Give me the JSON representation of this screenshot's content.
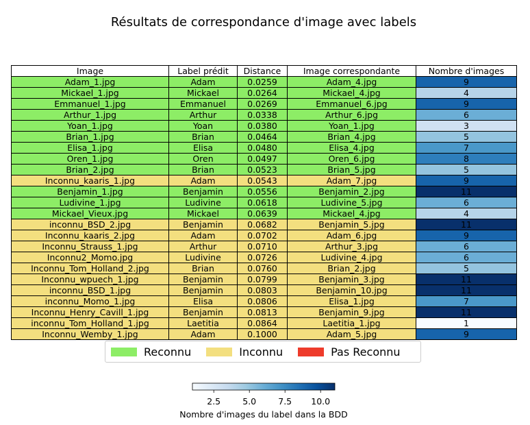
{
  "chart_data": {
    "type": "table",
    "title": "Résultats de correspondance d'image avec labels",
    "columns": [
      "Image",
      "Label prédit",
      "Distance",
      "Image correspondante",
      "Nombre d'images"
    ],
    "rows": [
      {
        "image": "Adam_1.jpg",
        "label": "Adam",
        "distance": "0.0259",
        "match": "Adam_4.jpg",
        "count": 9,
        "status": "Reconnu"
      },
      {
        "image": "Mickael_1.jpg",
        "label": "Mickael",
        "distance": "0.0264",
        "match": "Mickael_4.jpg",
        "count": 4,
        "status": "Reconnu"
      },
      {
        "image": "Emmanuel_1.jpg",
        "label": "Emmanuel",
        "distance": "0.0269",
        "match": "Emmanuel_6.jpg",
        "count": 9,
        "status": "Reconnu"
      },
      {
        "image": "Arthur_1.jpg",
        "label": "Arthur",
        "distance": "0.0338",
        "match": "Arthur_6.jpg",
        "count": 6,
        "status": "Reconnu"
      },
      {
        "image": "Yoan_1.jpg",
        "label": "Yoan",
        "distance": "0.0380",
        "match": "Yoan_1.jpg",
        "count": 3,
        "status": "Reconnu"
      },
      {
        "image": "Brian_1.jpg",
        "label": "Brian",
        "distance": "0.0464",
        "match": "Brian_4.jpg",
        "count": 5,
        "status": "Reconnu"
      },
      {
        "image": "Elisa_1.jpg",
        "label": "Elisa",
        "distance": "0.0480",
        "match": "Elisa_4.jpg",
        "count": 7,
        "status": "Reconnu"
      },
      {
        "image": "Oren_1.jpg",
        "label": "Oren",
        "distance": "0.0497",
        "match": "Oren_6.jpg",
        "count": 8,
        "status": "Reconnu"
      },
      {
        "image": "Brian_2.jpg",
        "label": "Brian",
        "distance": "0.0523",
        "match": "Brian_5.jpg",
        "count": 5,
        "status": "Reconnu"
      },
      {
        "image": "Inconnu_kaaris_1.jpg",
        "label": "Adam",
        "distance": "0.0543",
        "match": "Adam_7.jpg",
        "count": 9,
        "status": "Inconnu"
      },
      {
        "image": "Benjamin_1.jpg",
        "label": "Benjamin",
        "distance": "0.0556",
        "match": "Benjamin_2.jpg",
        "count": 11,
        "status": "Reconnu"
      },
      {
        "image": "Ludivine_1.jpg",
        "label": "Ludivine",
        "distance": "0.0618",
        "match": "Ludivine_5.jpg",
        "count": 6,
        "status": "Reconnu"
      },
      {
        "image": "Mickael_Vieux.jpg",
        "label": "Mickael",
        "distance": "0.0639",
        "match": "Mickael_4.jpg",
        "count": 4,
        "status": "Reconnu"
      },
      {
        "image": "inconnu_BSD_2.jpg",
        "label": "Benjamin",
        "distance": "0.0682",
        "match": "Benjamin_5.jpg",
        "count": 11,
        "status": "Inconnu"
      },
      {
        "image": "Inconnu_kaaris_2.jpg",
        "label": "Adam",
        "distance": "0.0702",
        "match": "Adam_6.jpg",
        "count": 9,
        "status": "Inconnu"
      },
      {
        "image": "Inconnu_Strauss_1.jpg",
        "label": "Arthur",
        "distance": "0.0710",
        "match": "Arthur_3.jpg",
        "count": 6,
        "status": "Inconnu"
      },
      {
        "image": "Inconnu2_Momo.jpg",
        "label": "Ludivine",
        "distance": "0.0726",
        "match": "Ludivine_4.jpg",
        "count": 6,
        "status": "Inconnu"
      },
      {
        "image": "Inconnu_Tom_Holland_2.jpg",
        "label": "Brian",
        "distance": "0.0760",
        "match": "Brian_2.jpg",
        "count": 5,
        "status": "Inconnu"
      },
      {
        "image": "Inconnu_wpuech_1.jpg",
        "label": "Benjamin",
        "distance": "0.0799",
        "match": "Benjamin_3.jpg",
        "count": 11,
        "status": "Inconnu"
      },
      {
        "image": "inconnu_BSD_1.jpg",
        "label": "Benjamin",
        "distance": "0.0803",
        "match": "Benjamin_10.jpg",
        "count": 11,
        "status": "Inconnu"
      },
      {
        "image": "inconnu_Momo_1.jpg",
        "label": "Elisa",
        "distance": "0.0806",
        "match": "Elisa_1.jpg",
        "count": 7,
        "status": "Inconnu"
      },
      {
        "image": "Inconnu_Henry_Cavill_1.jpg",
        "label": "Benjamin",
        "distance": "0.0813",
        "match": "Benjamin_9.jpg",
        "count": 11,
        "status": "Inconnu"
      },
      {
        "image": "inconnu_Tom_Holland_1.jpg",
        "label": "Laetitia",
        "distance": "0.0864",
        "match": "Laetitia_1.jpg",
        "count": 1,
        "status": "Inconnu"
      },
      {
        "image": "Inconnu_Wemby_1.jpg",
        "label": "Adam",
        "distance": "0.1000",
        "match": "Adam_5.jpg",
        "count": 9,
        "status": "Inconnu"
      }
    ],
    "legend": {
      "placement": "bottom-center",
      "entries": [
        {
          "label": "Reconnu",
          "color": "#8ded66"
        },
        {
          "label": "Inconnu",
          "color": "#f3df7f"
        },
        {
          "label": "Pas Reconnu",
          "color": "#ee3b2b"
        }
      ]
    },
    "colorbar": {
      "label": "Nombre d'images du label dans la BDD",
      "min": 1,
      "max": 11,
      "ticks": [
        "2.5",
        "5.0",
        "7.5",
        "10.0"
      ],
      "tick_values": [
        2.5,
        5.0,
        7.5,
        10.0
      ],
      "colormap": "Blues"
    },
    "colors": {
      "Reconnu": "#8ded66",
      "Inconnu": "#f3df7f",
      "Pas Reconnu": "#ee3b2b"
    }
  }
}
